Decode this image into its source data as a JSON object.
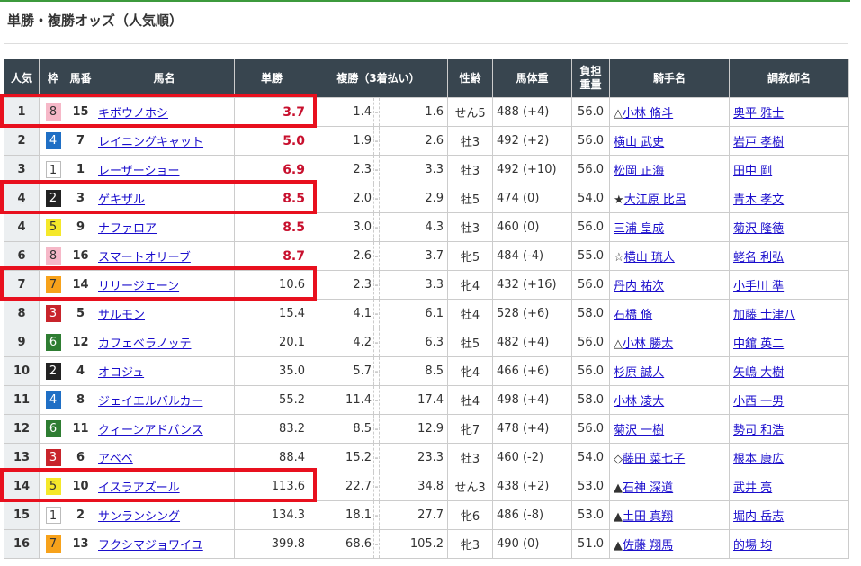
{
  "title": "単勝・複勝オッズ（人気順）",
  "headers": {
    "pop": "人気",
    "waku": "枠",
    "num": "馬番",
    "name": "馬名",
    "win": "単勝",
    "place": "複勝（3着払い）",
    "sex": "性齢",
    "weight": "馬体重",
    "load_1": "負担",
    "load_2": "重量",
    "jockey": "騎手名",
    "trainer": "調教師名"
  },
  "waku_colors": {
    "1": "#ffffff",
    "2": "#222222",
    "3": "#c8242b",
    "4": "#1f6fc5",
    "5": "#f5e82a",
    "6": "#2e7d32",
    "7": "#f7a21b",
    "8": "#f6b8c8"
  },
  "highlight_color": "#e8101e",
  "odds_red_color": "#c8102e",
  "highlighted_rows": [
    0,
    3,
    6,
    13
  ],
  "rows": [
    {
      "pop": "1",
      "waku": "8",
      "num": "15",
      "name": "キボウノホシ",
      "win": "3.7",
      "win_red": true,
      "p1": "1.4",
      "p2": "1.6",
      "sex": "せん5",
      "weight": "488 (+4)",
      "load": "56.0",
      "mark": "△",
      "jockey": "小林 脩斗",
      "trainer": "奥平 雅士"
    },
    {
      "pop": "2",
      "waku": "4",
      "num": "7",
      "name": "レイニングキャット",
      "win": "5.0",
      "win_red": true,
      "p1": "1.9",
      "p2": "2.6",
      "sex": "牡3",
      "weight": "492 (+2)",
      "load": "56.0",
      "mark": "",
      "jockey": "横山 武史",
      "trainer": "岩戸 孝樹"
    },
    {
      "pop": "3",
      "waku": "1",
      "num": "1",
      "name": "レーザーショー",
      "win": "6.9",
      "win_red": true,
      "p1": "2.3",
      "p2": "3.3",
      "sex": "牡3",
      "weight": "492 (+10)",
      "load": "56.0",
      "mark": "",
      "jockey": "松岡 正海",
      "trainer": "田中 剛"
    },
    {
      "pop": "4",
      "waku": "2",
      "num": "3",
      "name": "ゲキザル",
      "win": "8.5",
      "win_red": true,
      "p1": "2.0",
      "p2": "2.9",
      "sex": "牡5",
      "weight": "474 (0)",
      "load": "54.0",
      "mark": "★",
      "jockey": "大江原 比呂",
      "trainer": "青木 孝文"
    },
    {
      "pop": "4",
      "waku": "5",
      "num": "9",
      "name": "ナファロア",
      "win": "8.5",
      "win_red": true,
      "p1": "3.0",
      "p2": "4.3",
      "sex": "牡3",
      "weight": "460 (0)",
      "load": "56.0",
      "mark": "",
      "jockey": "三浦 皇成",
      "trainer": "菊沢 隆徳"
    },
    {
      "pop": "6",
      "waku": "8",
      "num": "16",
      "name": "スマートオリーブ",
      "win": "8.7",
      "win_red": true,
      "p1": "2.6",
      "p2": "3.7",
      "sex": "牝5",
      "weight": "484 (-4)",
      "load": "55.0",
      "mark": "☆",
      "jockey": "横山 琉人",
      "trainer": "蛯名 利弘"
    },
    {
      "pop": "7",
      "waku": "7",
      "num": "14",
      "name": "リリージェーン",
      "win": "10.6",
      "win_red": false,
      "p1": "2.3",
      "p2": "3.3",
      "sex": "牝4",
      "weight": "432 (+16)",
      "load": "56.0",
      "mark": "",
      "jockey": "丹内 祐次",
      "trainer": "小手川 準"
    },
    {
      "pop": "8",
      "waku": "3",
      "num": "5",
      "name": "サルモン",
      "win": "15.4",
      "win_red": false,
      "p1": "4.1",
      "p2": "6.1",
      "sex": "牡4",
      "weight": "528 (+6)",
      "load": "58.0",
      "mark": "",
      "jockey": "石橋 脩",
      "trainer": "加藤 士津八"
    },
    {
      "pop": "9",
      "waku": "6",
      "num": "12",
      "name": "カフェベラノッテ",
      "win": "20.1",
      "win_red": false,
      "p1": "4.2",
      "p2": "6.3",
      "sex": "牡5",
      "weight": "482 (+4)",
      "load": "56.0",
      "mark": "△",
      "jockey": "小林 勝太",
      "trainer": "中舘 英二"
    },
    {
      "pop": "10",
      "waku": "2",
      "num": "4",
      "name": "オコジュ",
      "win": "35.0",
      "win_red": false,
      "p1": "5.7",
      "p2": "8.5",
      "sex": "牝4",
      "weight": "466 (+6)",
      "load": "56.0",
      "mark": "",
      "jockey": "杉原 誠人",
      "trainer": "矢嶋 大樹"
    },
    {
      "pop": "11",
      "waku": "4",
      "num": "8",
      "name": "ジェイエルバルカー",
      "win": "55.2",
      "win_red": false,
      "p1": "11.4",
      "p2": "17.4",
      "sex": "牡4",
      "weight": "498 (+4)",
      "load": "58.0",
      "mark": "",
      "jockey": "小林 凌大",
      "trainer": "小西 一男"
    },
    {
      "pop": "12",
      "waku": "6",
      "num": "11",
      "name": "クィーンアドバンス",
      "win": "83.2",
      "win_red": false,
      "p1": "8.5",
      "p2": "12.9",
      "sex": "牝7",
      "weight": "478 (+4)",
      "load": "56.0",
      "mark": "",
      "jockey": "菊沢 一樹",
      "trainer": "勢司 和浩"
    },
    {
      "pop": "13",
      "waku": "3",
      "num": "6",
      "name": "アベベ",
      "win": "88.4",
      "win_red": false,
      "p1": "15.2",
      "p2": "23.3",
      "sex": "牡3",
      "weight": "460 (-2)",
      "load": "54.0",
      "mark": "◇",
      "jockey": "藤田 菜七子",
      "trainer": "根本 康広"
    },
    {
      "pop": "14",
      "waku": "5",
      "num": "10",
      "name": "イスラアズール",
      "win": "113.6",
      "win_red": false,
      "p1": "22.7",
      "p2": "34.8",
      "sex": "せん3",
      "weight": "438 (+2)",
      "load": "53.0",
      "mark": "▲",
      "jockey": "石神 深道",
      "trainer": "武井 亮"
    },
    {
      "pop": "15",
      "waku": "1",
      "num": "2",
      "name": "サンランシング",
      "win": "134.3",
      "win_red": false,
      "p1": "18.1",
      "p2": "27.7",
      "sex": "牝6",
      "weight": "486 (-8)",
      "load": "53.0",
      "mark": "▲",
      "jockey": "土田 真翔",
      "trainer": "堀内 岳志"
    },
    {
      "pop": "16",
      "waku": "7",
      "num": "13",
      "name": "フクシマジョワイユ",
      "win": "399.8",
      "win_red": false,
      "p1": "68.6",
      "p2": "105.2",
      "sex": "牝3",
      "weight": "490 (0)",
      "load": "51.0",
      "mark": "▲",
      "jockey": "佐藤 翔馬",
      "trainer": "的場 均"
    }
  ]
}
